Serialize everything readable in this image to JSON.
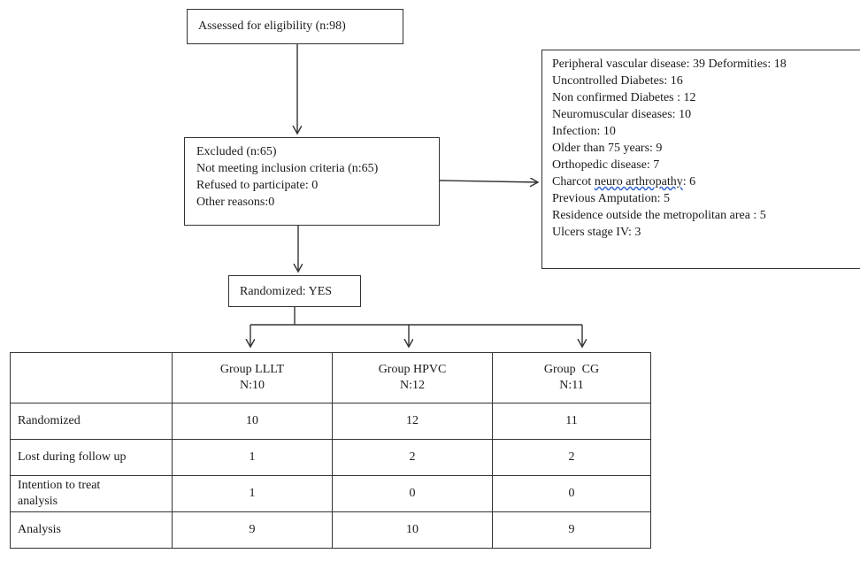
{
  "assessed": "Assessed for eligibility (n:98)",
  "excluded": {
    "lines": [
      "Excluded (n:65)",
      "Not meeting inclusion criteria (n:65)",
      "Refused to participate: 0",
      "Other reasons:0"
    ]
  },
  "exclusion_reasons": {
    "lines": [
      "Peripheral vascular disease: 39 Deformities: 18",
      "Uncontrolled Diabetes: 16",
      "Non confirmed Diabetes : 12",
      "Neuromuscular diseases: 10",
      "Infection: 10",
      "Older than 75 years: 9",
      "Orthopedic disease: 7"
    ],
    "charcot_prefix": "Charcot ",
    "charcot_underlined": "neuro arthropathy",
    "charcot_suffix": ": 6",
    "lines_after": [
      "Previous Amputation: 5",
      "Residence outside the metropolitan area : 5",
      "Ulcers stage IV: 3"
    ]
  },
  "randomized": "Randomized: YES",
  "table": {
    "columns": [
      {
        "name": "Group LLLT",
        "n": "N:10"
      },
      {
        "name": "Group HPVC",
        "n": "N:12"
      },
      {
        "name": "Group  CG",
        "n": "N:11"
      }
    ],
    "rows": [
      {
        "label": [
          "Randomized"
        ],
        "values": [
          "10",
          "12",
          "11"
        ]
      },
      {
        "label": [
          "Lost during follow up"
        ],
        "values": [
          "1",
          "2",
          "2"
        ]
      },
      {
        "label": [
          "Intention to treat",
          "analysis"
        ],
        "values": [
          "1",
          "0",
          "0"
        ]
      },
      {
        "label": [
          "Analysis"
        ],
        "values": [
          "9",
          "10",
          "9"
        ]
      }
    ]
  }
}
